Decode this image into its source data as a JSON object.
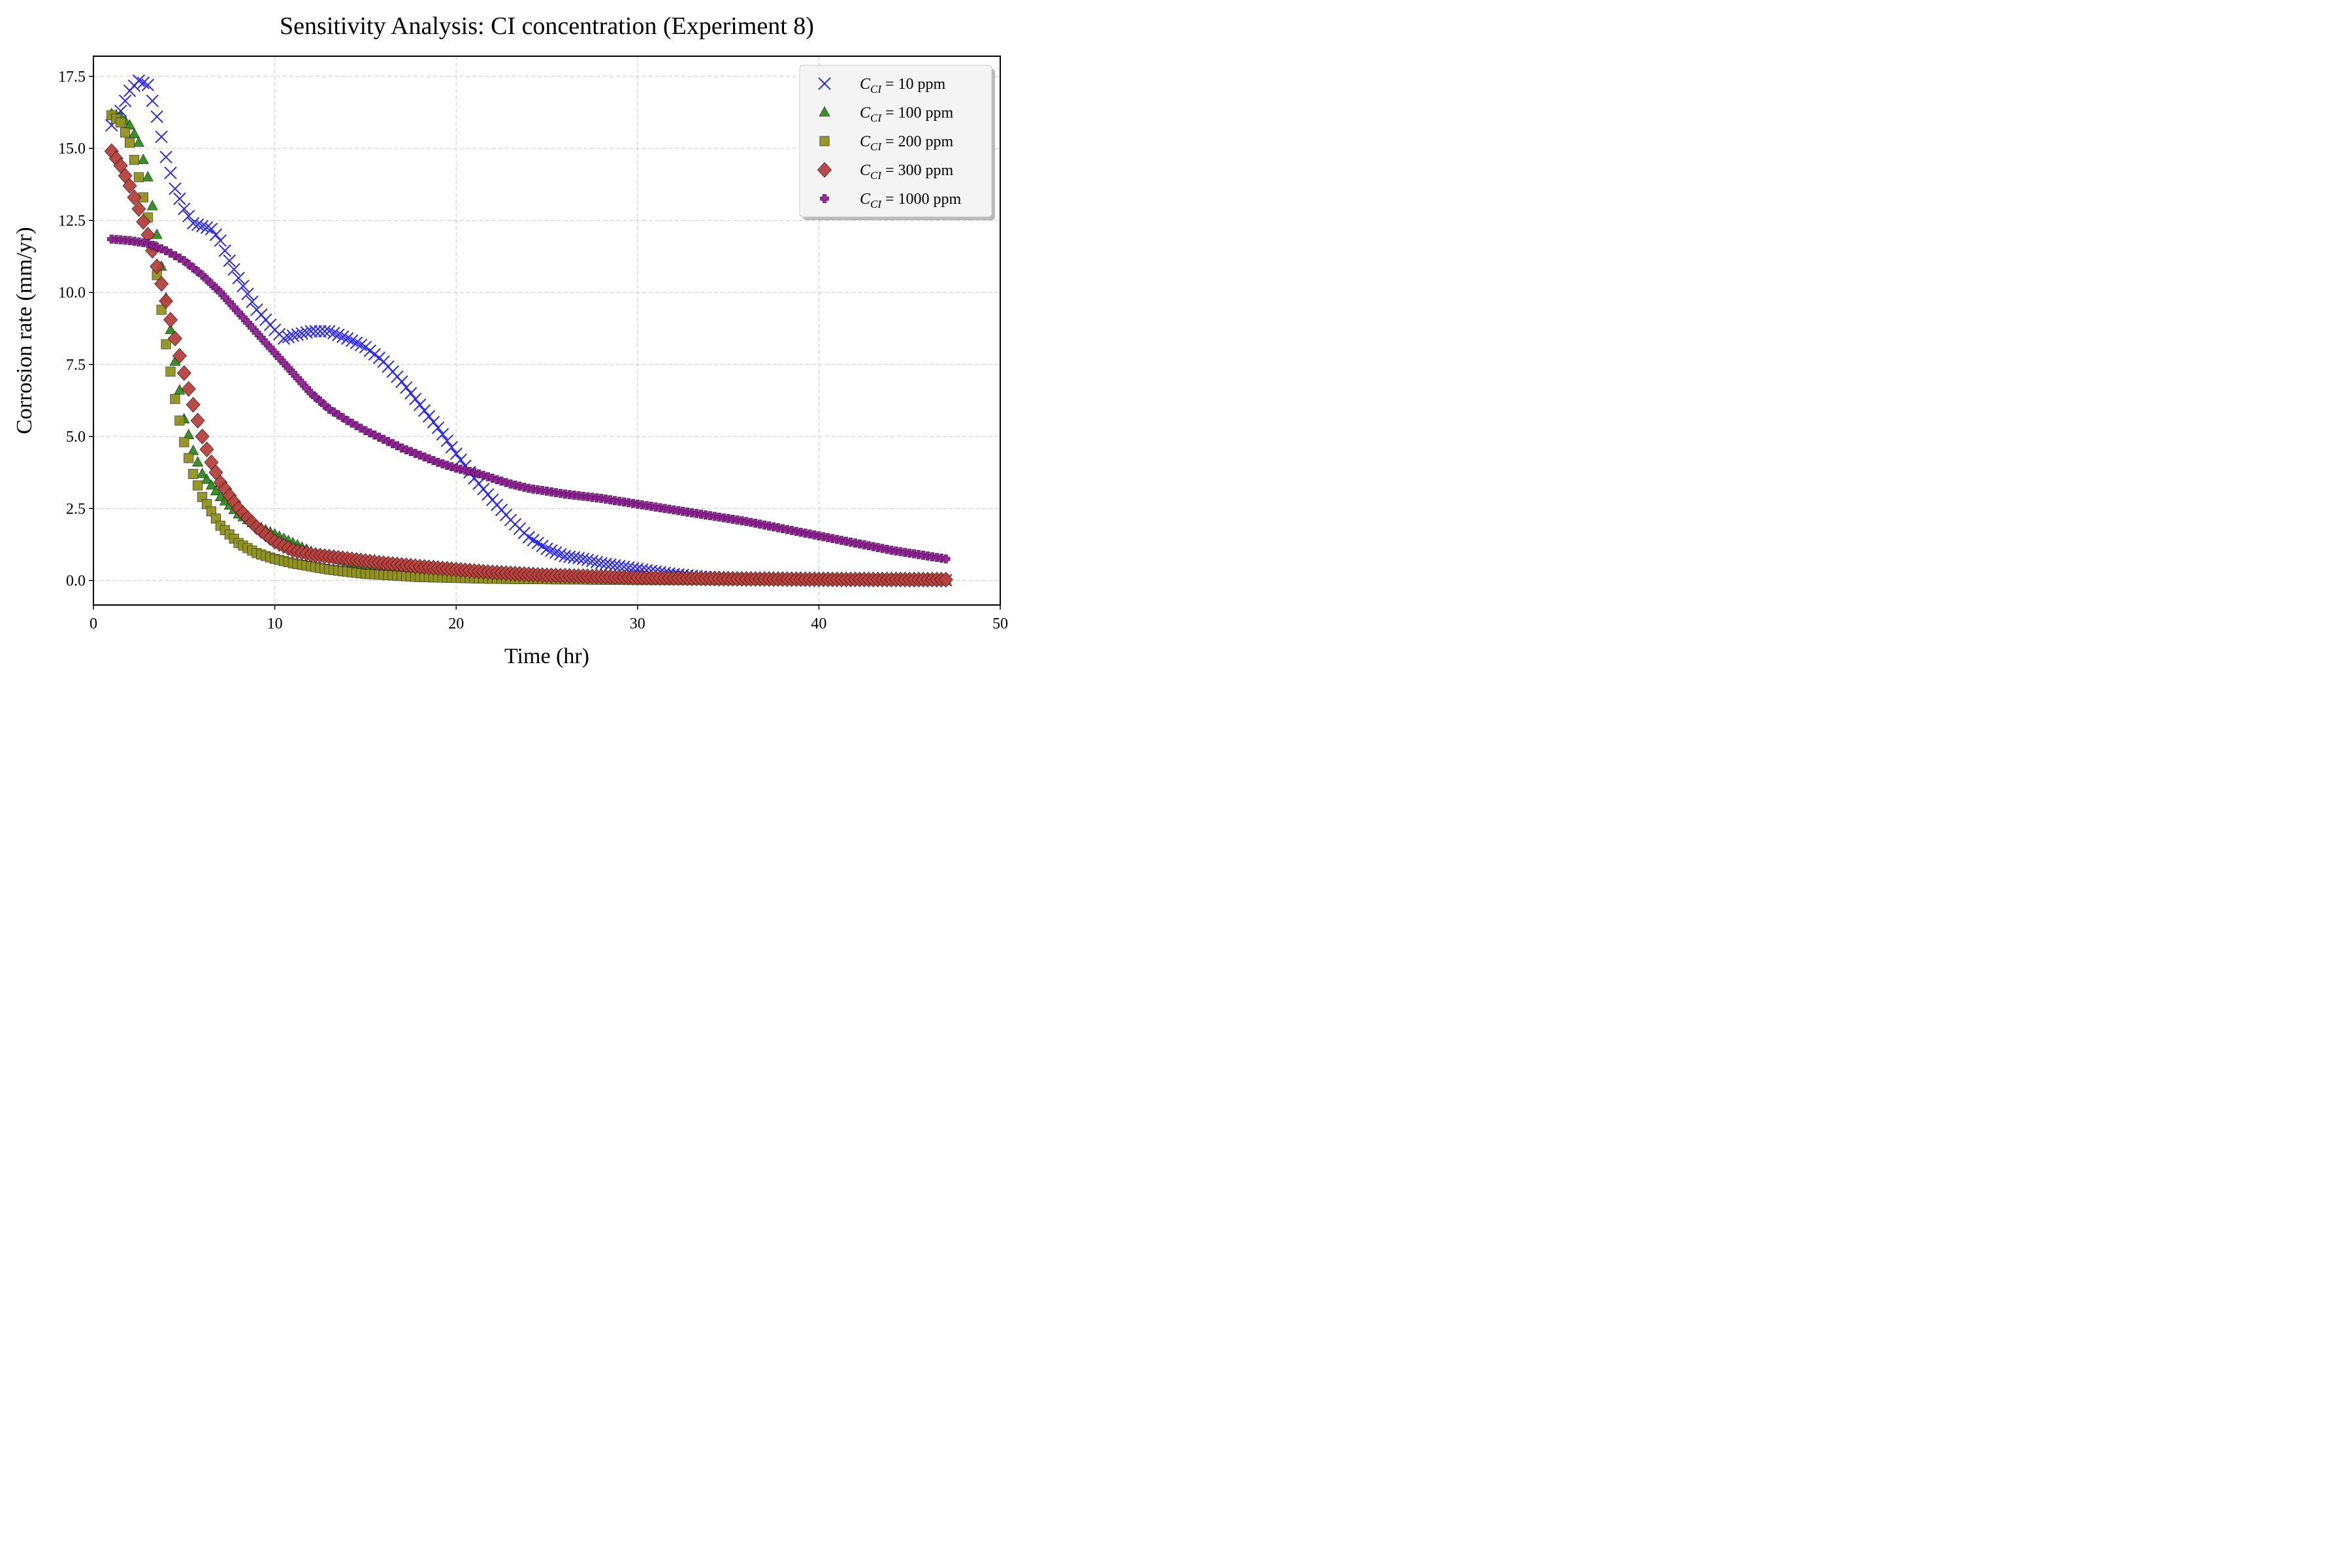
{
  "chart_data": {
    "type": "scatter",
    "title": "Sensitivity Analysis: CI concentration (Experiment 8)",
    "xlabel": "Time (hr)",
    "ylabel": "Corrosion rate (mm/yr)",
    "xlim": [
      0,
      50
    ],
    "ylim": [
      -0.85,
      18.2
    ],
    "xticks": [
      0,
      10,
      20,
      30,
      40,
      50
    ],
    "yticks": [
      0.0,
      2.5,
      5.0,
      7.5,
      10.0,
      12.5,
      15.0,
      17.5
    ],
    "xtick_labels": [
      "0",
      "10",
      "20",
      "30",
      "40",
      "50"
    ],
    "ytick_labels": [
      "0.0",
      "2.5",
      "5.0",
      "7.5",
      "10.0",
      "12.5",
      "15.0",
      "17.5"
    ],
    "grid": true,
    "legend_position": "top-right",
    "x_range": [
      1.0,
      47.0
    ],
    "points_per_series": 185,
    "series": [
      {
        "name": "CI = 10 ppm",
        "legend_base": "C",
        "legend_sub": "CI",
        "legend_rest": " = 10 ppm",
        "marker": "x",
        "color": "#2b2bf0",
        "knots": [
          [
            1,
            15.8
          ],
          [
            1.5,
            16.3
          ],
          [
            2,
            17
          ],
          [
            2.5,
            17.35
          ],
          [
            3,
            17.2
          ],
          [
            3.5,
            16.1
          ],
          [
            4,
            14.7
          ],
          [
            4.5,
            13.6
          ],
          [
            5,
            12.9
          ],
          [
            5.5,
            12.4
          ],
          [
            6,
            12.3
          ],
          [
            6.5,
            12.2
          ],
          [
            7,
            11.8
          ],
          [
            7.5,
            11.1
          ],
          [
            8,
            10.5
          ],
          [
            9,
            9.4
          ],
          [
            10,
            8.7
          ],
          [
            10.5,
            8.4
          ],
          [
            11,
            8.5
          ],
          [
            12,
            8.65
          ],
          [
            13,
            8.65
          ],
          [
            14,
            8.4
          ],
          [
            15,
            8.1
          ],
          [
            16,
            7.6
          ],
          [
            17,
            6.9
          ],
          [
            18,
            6.1
          ],
          [
            19,
            5.3
          ],
          [
            20,
            4.4
          ],
          [
            21,
            3.55
          ],
          [
            22,
            2.8
          ],
          [
            23,
            2.1
          ],
          [
            24,
            1.5
          ],
          [
            25,
            1.1
          ],
          [
            26,
            0.85
          ],
          [
            27,
            0.75
          ],
          [
            28,
            0.6
          ],
          [
            30,
            0.4
          ],
          [
            32,
            0.22
          ],
          [
            34,
            0.1
          ],
          [
            36,
            0.05
          ],
          [
            40,
            0.02
          ],
          [
            47,
            0.01
          ]
        ]
      },
      {
        "name": "CI = 100 ppm",
        "legend_base": "C",
        "legend_sub": "CI",
        "legend_rest": " = 100 ppm",
        "marker": "triangle",
        "color": "#2e8b1e",
        "knots": [
          [
            1,
            16.2
          ],
          [
            1.5,
            16.1
          ],
          [
            2,
            15.8
          ],
          [
            2.5,
            15.2
          ],
          [
            3,
            14
          ],
          [
            3.5,
            12
          ],
          [
            4,
            9.8
          ],
          [
            4.5,
            7.6
          ],
          [
            5,
            5.6
          ],
          [
            5.5,
            4.5
          ],
          [
            6,
            3.7
          ],
          [
            7,
            2.9
          ],
          [
            8,
            2.3
          ],
          [
            9,
            1.9
          ],
          [
            10,
            1.6
          ],
          [
            11,
            1.3
          ],
          [
            12,
            1.0
          ],
          [
            13,
            0.8
          ],
          [
            15,
            0.5
          ],
          [
            18,
            0.25
          ],
          [
            22,
            0.1
          ],
          [
            30,
            0.03
          ],
          [
            47,
            0.01
          ]
        ]
      },
      {
        "name": "CI = 200 ppm",
        "legend_base": "C",
        "legend_sub": "CI",
        "legend_rest": " = 200 ppm",
        "marker": "square",
        "color": "#8f921c",
        "knots": [
          [
            1,
            16.15
          ],
          [
            1.5,
            15.9
          ],
          [
            2,
            15.2
          ],
          [
            2.5,
            14
          ],
          [
            3,
            12.6
          ],
          [
            3.5,
            10.6
          ],
          [
            4,
            8.2
          ],
          [
            4.5,
            6.3
          ],
          [
            5,
            4.8
          ],
          [
            5.5,
            3.7
          ],
          [
            6,
            2.9
          ],
          [
            7,
            1.9
          ],
          [
            8,
            1.3
          ],
          [
            9,
            0.95
          ],
          [
            10,
            0.75
          ],
          [
            11,
            0.6
          ],
          [
            13,
            0.38
          ],
          [
            15,
            0.23
          ],
          [
            18,
            0.12
          ],
          [
            22,
            0.06
          ],
          [
            30,
            0.02
          ],
          [
            47,
            0.01
          ]
        ]
      },
      {
        "name": "CI = 300 ppm",
        "legend_base": "C",
        "legend_sub": "CI",
        "legend_rest": " = 300 ppm",
        "marker": "diamond",
        "color": "#b5423e",
        "knots": [
          [
            1,
            14.9
          ],
          [
            1.5,
            14.4
          ],
          [
            2,
            13.7
          ],
          [
            2.5,
            12.9
          ],
          [
            3,
            12
          ],
          [
            3.5,
            10.9
          ],
          [
            4,
            9.7
          ],
          [
            4.5,
            8.4
          ],
          [
            5,
            7.2
          ],
          [
            5.5,
            6.1
          ],
          [
            6,
            5.0
          ],
          [
            6.5,
            4.1
          ],
          [
            7,
            3.4
          ],
          [
            8,
            2.5
          ],
          [
            9,
            1.85
          ],
          [
            10,
            1.35
          ],
          [
            11,
            1.05
          ],
          [
            12,
            0.9
          ],
          [
            14,
            0.75
          ],
          [
            16,
            0.6
          ],
          [
            18,
            0.48
          ],
          [
            20,
            0.38
          ],
          [
            22,
            0.28
          ],
          [
            25,
            0.18
          ],
          [
            30,
            0.1
          ],
          [
            35,
            0.06
          ],
          [
            40,
            0.04
          ],
          [
            47,
            0.03
          ]
        ]
      },
      {
        "name": "CI = 1000 ppm",
        "legend_base": "C",
        "legend_sub": "CI",
        "legend_rest": " = 1000 ppm",
        "marker": "plus",
        "color": "#8e1f93",
        "knots": [
          [
            1,
            11.85
          ],
          [
            2,
            11.8
          ],
          [
            3,
            11.7
          ],
          [
            4,
            11.45
          ],
          [
            5,
            11.1
          ],
          [
            6,
            10.6
          ],
          [
            7,
            10.0
          ],
          [
            8,
            9.3
          ],
          [
            9,
            8.6
          ],
          [
            10,
            7.9
          ],
          [
            11,
            7.2
          ],
          [
            12,
            6.5
          ],
          [
            13,
            5.95
          ],
          [
            14,
            5.55
          ],
          [
            15,
            5.2
          ],
          [
            16,
            4.9
          ],
          [
            17,
            4.6
          ],
          [
            18,
            4.35
          ],
          [
            19,
            4.1
          ],
          [
            20,
            3.9
          ],
          [
            21,
            3.75
          ],
          [
            22,
            3.55
          ],
          [
            23,
            3.35
          ],
          [
            24,
            3.2
          ],
          [
            25,
            3.1
          ],
          [
            26,
            3.0
          ],
          [
            28,
            2.85
          ],
          [
            30,
            2.65
          ],
          [
            32,
            2.45
          ],
          [
            34,
            2.25
          ],
          [
            36,
            2.05
          ],
          [
            38,
            1.8
          ],
          [
            40,
            1.55
          ],
          [
            42,
            1.3
          ],
          [
            44,
            1.05
          ],
          [
            47,
            0.75
          ]
        ]
      }
    ]
  }
}
